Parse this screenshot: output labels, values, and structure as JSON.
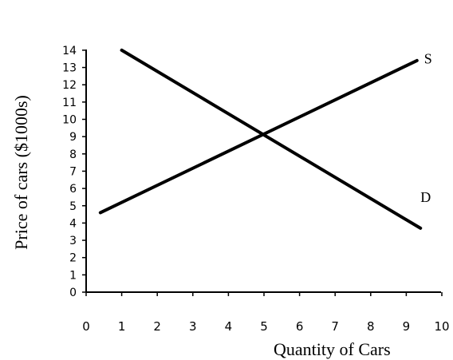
{
  "chart_data": {
    "type": "line",
    "title": "",
    "xlabel": "Quantity of Cars",
    "ylabel": "Price of cars ($1000s)",
    "xlim": [
      0,
      10
    ],
    "ylim": [
      0,
      14
    ],
    "x_ticks": [
      0,
      1,
      2,
      3,
      4,
      5,
      6,
      7,
      8,
      9,
      10
    ],
    "y_ticks": [
      0,
      1,
      2,
      3,
      4,
      5,
      6,
      7,
      8,
      9,
      10,
      11,
      12,
      13,
      14
    ],
    "grid": false,
    "series": [
      {
        "name": "S",
        "x": [
          0.4,
          9.3
        ],
        "y": [
          4.6,
          13.4
        ]
      },
      {
        "name": "D",
        "x": [
          1.0,
          9.4
        ],
        "y": [
          14.0,
          3.7
        ]
      }
    ],
    "annotations": [
      {
        "text": "S",
        "x": 9.5,
        "y": 13.5
      },
      {
        "text": "D",
        "x": 9.4,
        "y": 5.5
      }
    ]
  }
}
